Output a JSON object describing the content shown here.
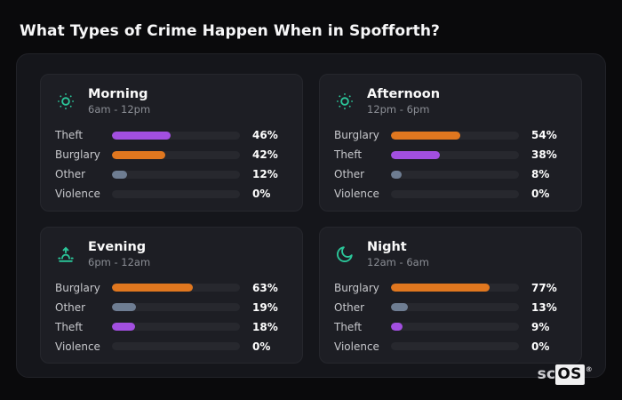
{
  "page": {
    "title": "What Types of Crime Happen When in Spofforth?"
  },
  "brand": {
    "prefix": "sc",
    "suffix": "OS",
    "registered": "®"
  },
  "colors": {
    "accent_icon": "#2bc79a",
    "bar_theft": "#a24fe0",
    "bar_burglary": "#e0771f",
    "bar_other": "#6e7d92",
    "bar_violence": "transparent",
    "track": "#27282e"
  },
  "chart_data": [
    {
      "type": "bar",
      "orientation": "horizontal",
      "title": "Morning",
      "subtitle": "6am - 12pm",
      "icon": "sun-icon",
      "unit": "%",
      "xlim": [
        0,
        100
      ],
      "categories": [
        "Theft",
        "Burglary",
        "Other",
        "Violence"
      ],
      "values": [
        46,
        42,
        12,
        0
      ]
    },
    {
      "type": "bar",
      "orientation": "horizontal",
      "title": "Afternoon",
      "subtitle": "12pm - 6pm",
      "icon": "sun-icon",
      "unit": "%",
      "xlim": [
        0,
        100
      ],
      "categories": [
        "Burglary",
        "Theft",
        "Other",
        "Violence"
      ],
      "values": [
        54,
        38,
        8,
        0
      ]
    },
    {
      "type": "bar",
      "orientation": "horizontal",
      "title": "Evening",
      "subtitle": "6pm - 12am",
      "icon": "sunrise-icon",
      "unit": "%",
      "xlim": [
        0,
        100
      ],
      "categories": [
        "Burglary",
        "Other",
        "Theft",
        "Violence"
      ],
      "values": [
        63,
        19,
        18,
        0
      ]
    },
    {
      "type": "bar",
      "orientation": "horizontal",
      "title": "Night",
      "subtitle": "12am - 6am",
      "icon": "moon-icon",
      "unit": "%",
      "xlim": [
        0,
        100
      ],
      "categories": [
        "Burglary",
        "Other",
        "Theft",
        "Violence"
      ],
      "values": [
        77,
        13,
        9,
        0
      ]
    }
  ]
}
